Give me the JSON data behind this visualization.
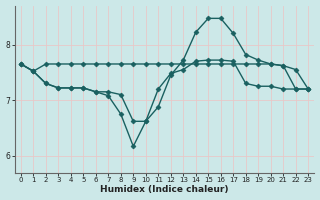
{
  "xlabel": "Humidex (Indice chaleur)",
  "bg_color": "#cce8e8",
  "grid_color": "#e8c8c8",
  "line_color": "#1a6060",
  "xlim": [
    -0.5,
    23.5
  ],
  "ylim": [
    5.7,
    8.7
  ],
  "yticks": [
    6,
    7,
    8
  ],
  "xticks": [
    0,
    1,
    2,
    3,
    4,
    5,
    6,
    7,
    8,
    9,
    10,
    11,
    12,
    13,
    14,
    15,
    16,
    17,
    18,
    19,
    20,
    21,
    22,
    23
  ],
  "series1_x": [
    0,
    1,
    2,
    3,
    4,
    5,
    6,
    7,
    8,
    9,
    10,
    11,
    12,
    13,
    14,
    15,
    16,
    17,
    18,
    19,
    20,
    21,
    22,
    23
  ],
  "series1_y": [
    7.65,
    7.52,
    7.65,
    7.65,
    7.65,
    7.65,
    7.65,
    7.65,
    7.65,
    7.65,
    7.65,
    7.65,
    7.65,
    7.65,
    7.65,
    7.65,
    7.65,
    7.65,
    7.65,
    7.65,
    7.65,
    7.62,
    7.2,
    7.2
  ],
  "series2_x": [
    0,
    1,
    2,
    3,
    4,
    5,
    6,
    7,
    8,
    9,
    10,
    11,
    12,
    13,
    14,
    15,
    16,
    17,
    18,
    19,
    20,
    21,
    22,
    23
  ],
  "series2_y": [
    7.65,
    7.52,
    7.3,
    7.22,
    7.22,
    7.22,
    7.15,
    7.15,
    7.1,
    6.62,
    6.62,
    7.2,
    7.48,
    7.55,
    7.7,
    7.72,
    7.72,
    7.7,
    7.3,
    7.25,
    7.25,
    7.2,
    7.2,
    7.2
  ],
  "series3_x": [
    0,
    1,
    2,
    3,
    4,
    5,
    6,
    7,
    8,
    9,
    10,
    11,
    12,
    13,
    14,
    15,
    16,
    17,
    18,
    19,
    20,
    21,
    22,
    23
  ],
  "series3_y": [
    7.65,
    7.52,
    7.3,
    7.22,
    7.22,
    7.22,
    7.15,
    7.08,
    6.75,
    6.17,
    6.62,
    6.88,
    7.45,
    7.72,
    8.22,
    8.47,
    8.47,
    8.2,
    7.82,
    7.72,
    7.65,
    7.62,
    7.55,
    7.2
  ],
  "marker": "D",
  "marker_size": 2.5,
  "linewidth": 1.0
}
